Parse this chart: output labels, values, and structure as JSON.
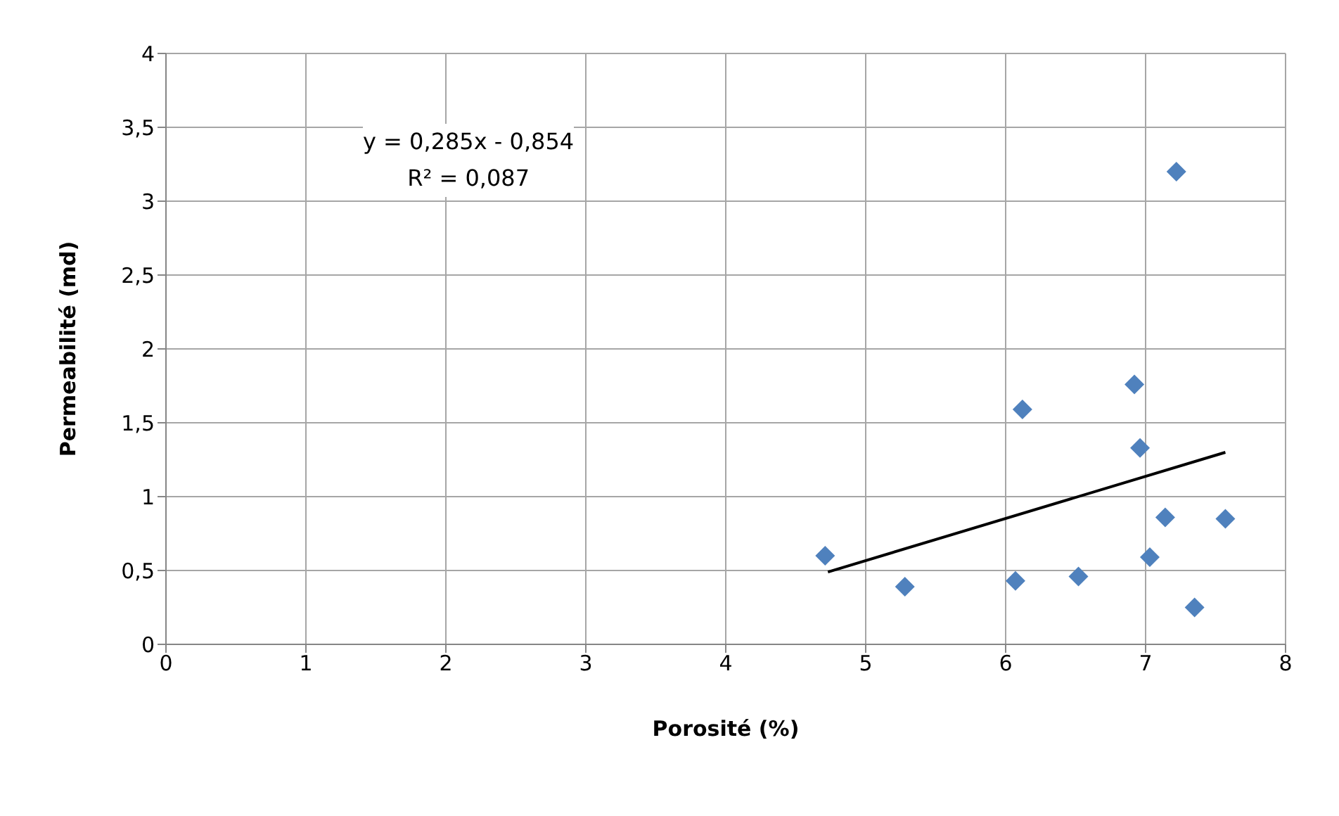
{
  "chart_data": {
    "type": "scatter",
    "xlabel": "Porosité (%)",
    "ylabel": "Permeabilité (md)",
    "annotations": [
      "y = 0,285x - 0,854",
      "R² = 0,087"
    ],
    "series": [
      {
        "color": "#4f81bd",
        "marker": "diamond",
        "x": [
          4.71,
          5.28,
          6.07,
          6.12,
          6.52,
          6.92,
          6.96,
          7.03,
          7.14,
          7.22,
          7.35,
          7.57
        ],
        "values": [
          0.6,
          0.39,
          0.43,
          1.59,
          0.46,
          1.76,
          1.33,
          0.59,
          0.86,
          3.2,
          0.25,
          0.85
        ]
      },
      {
        "type": "line",
        "color": "#000000",
        "marker": "none",
        "x": [
          4.73,
          7.57
        ],
        "values": [
          0.49,
          1.3
        ]
      }
    ],
    "xlim": [
      0,
      8
    ],
    "xticks": [
      0,
      1,
      2,
      3,
      4,
      5,
      6,
      7,
      8
    ],
    "ylim": [
      0,
      4
    ],
    "yticks": [
      0,
      {
        "value": 0.5,
        "label": "0,5"
      },
      1,
      {
        "value": 1.5,
        "label": "1,5"
      },
      2,
      {
        "value": 2.5,
        "label": "2,5"
      },
      3,
      {
        "value": 3.5,
        "label": "3,5"
      },
      4
    ],
    "grid": true
  }
}
